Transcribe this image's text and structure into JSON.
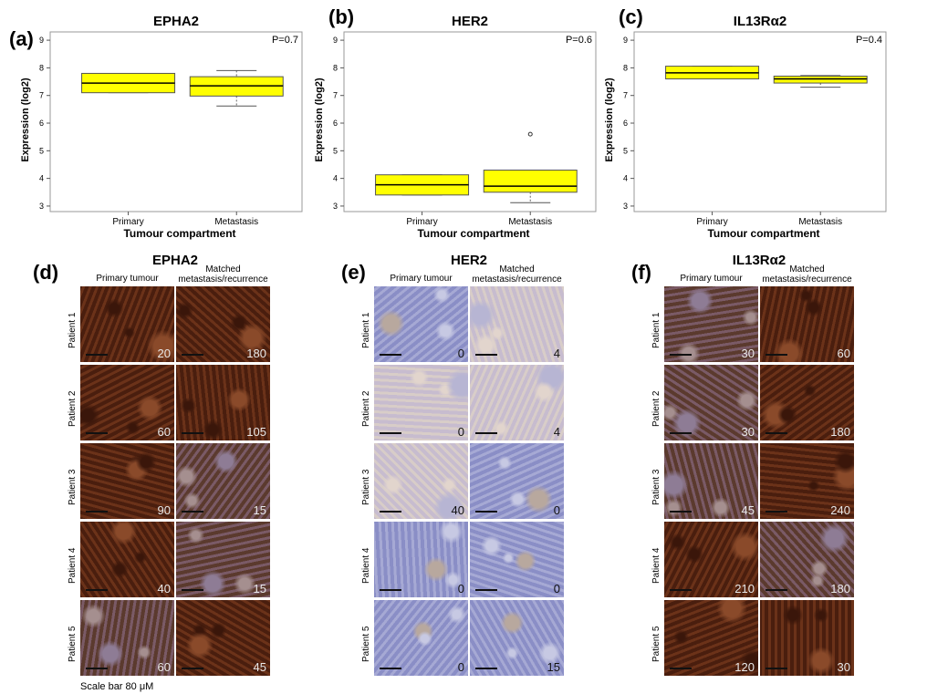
{
  "chart_data": [
    {
      "type": "box",
      "panel": "(a)",
      "title": "EPHA2",
      "xlabel": "Tumour compartment",
      "ylabel": "Expression (log2)",
      "ylim": [
        2.8,
        9.3
      ],
      "yticks": [
        3,
        4,
        5,
        6,
        7,
        8,
        9
      ],
      "pvalue": "P=0.7",
      "categories": [
        "Primary",
        "Metastasis"
      ],
      "boxes": [
        {
          "whisker_low": 7.1,
          "q1": 7.1,
          "median": 7.45,
          "q3": 7.8,
          "whisker_high": 7.8,
          "outliers": []
        },
        {
          "whisker_low": 6.62,
          "q1": 6.98,
          "median": 7.35,
          "q3": 7.68,
          "whisker_high": 7.9,
          "outliers": []
        }
      ]
    },
    {
      "type": "box",
      "panel": "(b)",
      "title": "HER2",
      "xlabel": "Tumour compartment",
      "ylabel": "Expression (log2)",
      "ylim": [
        2.8,
        9.3
      ],
      "yticks": [
        3,
        4,
        5,
        6,
        7,
        8,
        9
      ],
      "pvalue": "P=0.6",
      "categories": [
        "Primary",
        "Metastasis"
      ],
      "boxes": [
        {
          "whisker_low": 3.4,
          "q1": 3.4,
          "median": 3.77,
          "q3": 4.13,
          "whisker_high": 4.13,
          "outliers": []
        },
        {
          "whisker_low": 3.12,
          "q1": 3.5,
          "median": 3.72,
          "q3": 4.3,
          "whisker_high": 4.3,
          "outliers": [
            5.6
          ]
        }
      ]
    },
    {
      "type": "box",
      "panel": "(c)",
      "title": "IL13Rα2",
      "xlabel": "Tumour compartment",
      "ylabel": "Expression (log2)",
      "ylim": [
        2.8,
        9.3
      ],
      "yticks": [
        3,
        4,
        5,
        6,
        7,
        8,
        9
      ],
      "pvalue": "P=0.4",
      "categories": [
        "Primary",
        "Metastasis"
      ],
      "boxes": [
        {
          "whisker_low": 7.6,
          "q1": 7.6,
          "median": 7.82,
          "q3": 8.06,
          "whisker_high": 8.06,
          "outliers": []
        },
        {
          "whisker_low": 7.3,
          "q1": 7.45,
          "median": 7.6,
          "q3": 7.7,
          "whisker_high": 7.72,
          "outliers": []
        }
      ]
    }
  ],
  "colors": {
    "box_fill": "#ffff00",
    "dab_brown": "#5a2a14",
    "hematoxylin": "#8c8fc2",
    "background_tissue": "#efe6e2"
  },
  "ihc": {
    "row_labels": [
      "Patient 1",
      "Patient 2",
      "Patient 3",
      "Patient 4",
      "Patient 5"
    ],
    "col_headers": [
      "Primary tumour",
      "Matched\nmetastasis/recurrence"
    ],
    "panels": [
      {
        "letter": "(d)",
        "title": "EPHA2",
        "tiles": [
          {
            "score": "20",
            "tone": "dark"
          },
          {
            "score": "180",
            "tone": "dark"
          },
          {
            "score": "60",
            "tone": "dark"
          },
          {
            "score": "105",
            "tone": "dark"
          },
          {
            "score": "90",
            "tone": "dark"
          },
          {
            "score": "15",
            "tone": "mixed"
          },
          {
            "score": "40",
            "tone": "dark"
          },
          {
            "score": "15",
            "tone": "mixed"
          },
          {
            "score": "60",
            "tone": "mixed"
          },
          {
            "score": "45",
            "tone": "dark"
          }
        ]
      },
      {
        "letter": "(e)",
        "title": "HER2",
        "tiles": [
          {
            "score": "0",
            "tone": "blue"
          },
          {
            "score": "4",
            "tone": "pale"
          },
          {
            "score": "0",
            "tone": "pale"
          },
          {
            "score": "4",
            "tone": "pale"
          },
          {
            "score": "40",
            "tone": "pale"
          },
          {
            "score": "0",
            "tone": "blue"
          },
          {
            "score": "0",
            "tone": "blue"
          },
          {
            "score": "0",
            "tone": "blue"
          },
          {
            "score": "0",
            "tone": "blue"
          },
          {
            "score": "15",
            "tone": "blue"
          }
        ]
      },
      {
        "letter": "(f)",
        "title": "IL13Rα2",
        "tiles": [
          {
            "score": "30",
            "tone": "mixed"
          },
          {
            "score": "60",
            "tone": "dark"
          },
          {
            "score": "30",
            "tone": "mixed"
          },
          {
            "score": "180",
            "tone": "dark"
          },
          {
            "score": "45",
            "tone": "mixed"
          },
          {
            "score": "240",
            "tone": "dark"
          },
          {
            "score": "210",
            "tone": "dark"
          },
          {
            "score": "180",
            "tone": "mixed"
          },
          {
            "score": "120",
            "tone": "dark"
          },
          {
            "score": "30",
            "tone": "dark"
          }
        ]
      }
    ],
    "scale_note": "Scale bar 80 μM"
  }
}
